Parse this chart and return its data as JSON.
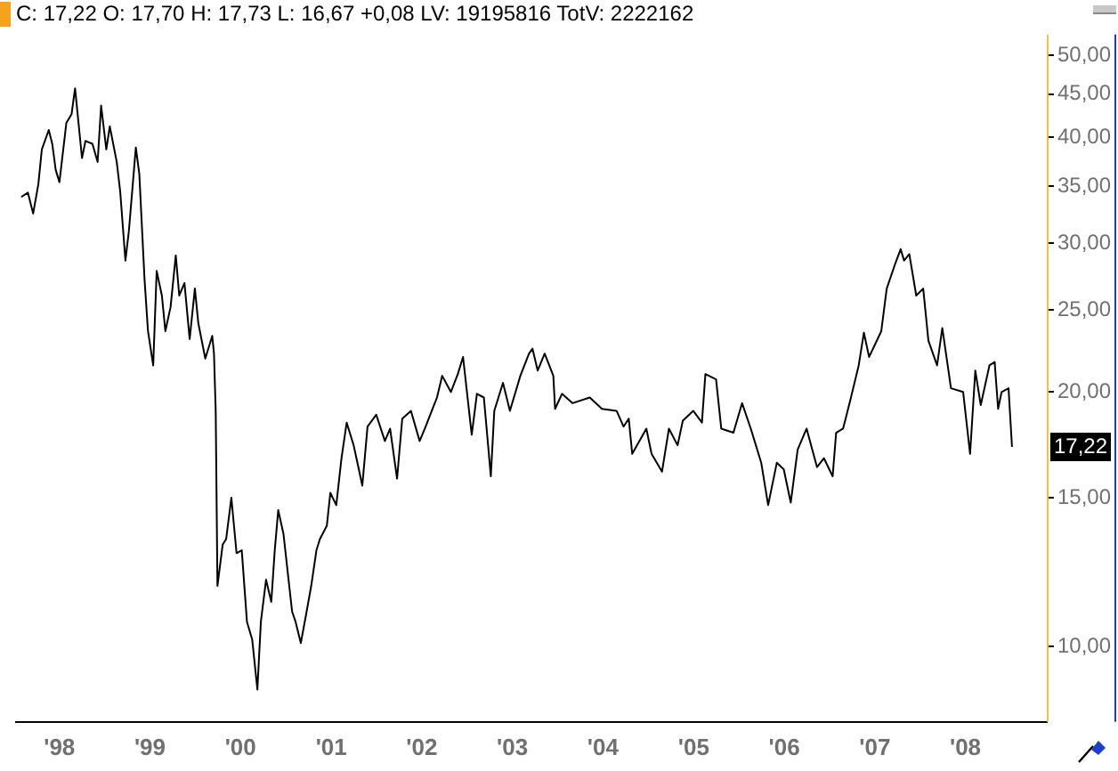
{
  "chart_data": {
    "type": "line",
    "title": "C: 17,22 O: 17,70 H: 17,73 L: 16,67 +0,08 LV: 19195816 TotV: 2222162",
    "log": "y",
    "xlim": [
      "1997-07-10",
      "2008-11-24"
    ],
    "xticks": [
      {
        "value": "1998-01-01",
        "label": "'98"
      },
      {
        "value": "1999-01-01",
        "label": "'99"
      },
      {
        "value": "2000-01-01",
        "label": "'00"
      },
      {
        "value": "2001-01-01",
        "label": "'01"
      },
      {
        "value": "2002-01-01",
        "label": "'02"
      },
      {
        "value": "2003-01-01",
        "label": "'03"
      },
      {
        "value": "2004-01-01",
        "label": "'04"
      },
      {
        "value": "2005-01-01",
        "label": "'05"
      },
      {
        "value": "2006-01-01",
        "label": "'06"
      },
      {
        "value": "2007-01-01",
        "label": "'07"
      },
      {
        "value": "2008-01-01",
        "label": "'08"
      }
    ],
    "ylim": [
      8.15,
      52.9
    ],
    "yticks": [
      {
        "value": 10,
        "label": "10,00"
      },
      {
        "value": 15,
        "label": "15,00"
      },
      {
        "value": 20,
        "label": "20,00"
      },
      {
        "value": 25,
        "label": "25,00"
      },
      {
        "value": 30,
        "label": "30,00"
      },
      {
        "value": 35,
        "label": "35,00"
      },
      {
        "value": 40,
        "label": "40,00"
      },
      {
        "value": 45,
        "label": "45,00"
      },
      {
        "value": 50,
        "label": "50,00"
      }
    ],
    "annotations": [
      {
        "text": "17,22",
        "y": 17.22
      }
    ],
    "x": [
      "1997-07-31",
      "1997-08-27",
      "1997-09-17",
      "1997-10-08",
      "1997-10-22",
      "1997-11-19",
      "1997-12-03",
      "1997-12-17",
      "1998-01-01",
      "1998-01-29",
      "1998-02-19",
      "1998-03-05",
      "1998-04-02",
      "1998-04-16",
      "1998-05-14",
      "1998-06-04",
      "1998-06-18",
      "1998-07-09",
      "1998-07-23",
      "1998-08-20",
      "1998-09-03",
      "1998-09-24",
      "1998-10-08",
      "1998-11-05",
      "1998-11-19",
      "1998-12-10",
      "1998-12-24",
      "1999-01-14",
      "1999-01-28",
      "1999-02-18",
      "1999-03-04",
      "1999-03-25",
      "1999-04-15",
      "1999-04-29",
      "1999-05-20",
      "1999-06-10",
      "1999-07-01",
      "1999-07-15",
      "1999-08-12",
      "1999-09-09",
      "1999-09-16",
      "1999-09-23",
      "1999-09-30",
      "1999-10-21",
      "1999-11-04",
      "1999-11-25",
      "1999-12-16",
      "2000-01-06",
      "2000-01-27",
      "2000-02-17",
      "2000-03-09",
      "2000-03-23",
      "2000-04-13",
      "2000-05-04",
      "2000-05-18",
      "2000-06-01",
      "2000-06-22",
      "2000-07-27",
      "2000-08-10",
      "2000-08-31",
      "2000-09-21",
      "2000-10-12",
      "2000-11-02",
      "2000-11-16",
      "2000-12-14",
      "2000-12-28",
      "2001-01-21",
      "2001-02-11",
      "2001-03-04",
      "2001-04-01",
      "2001-04-22",
      "2001-05-06",
      "2001-05-27",
      "2001-07-01",
      "2001-08-05",
      "2001-08-26",
      "2001-09-23",
      "2001-10-14",
      "2001-11-18",
      "2001-12-23",
      "2002-01-13",
      "2002-02-10",
      "2002-03-03",
      "2002-03-24",
      "2002-04-28",
      "2002-05-26",
      "2002-06-16",
      "2002-07-21",
      "2002-08-11",
      "2002-09-08",
      "2002-10-06",
      "2002-10-20",
      "2002-11-24",
      "2002-12-22",
      "2003-02-02",
      "2003-03-09",
      "2003-03-23",
      "2003-04-13",
      "2003-05-11",
      "2003-06-15",
      "2003-06-22",
      "2003-07-20",
      "2003-08-31",
      "2003-11-09",
      "2003-12-28",
      "2004-02-25",
      "2004-03-24",
      "2004-04-14",
      "2004-04-28",
      "2004-06-24",
      "2004-07-15",
      "2004-08-26",
      "2004-09-23",
      "2004-10-28",
      "2004-11-18",
      "2004-12-30",
      "2005-02-03",
      "2005-02-17",
      "2005-04-01",
      "2005-04-22",
      "2005-06-10",
      "2005-07-15",
      "2005-08-19",
      "2005-09-30",
      "2005-10-28",
      "2005-12-02",
      "2005-12-30",
      "2006-01-27",
      "2006-02-24",
      "2006-04-01",
      "2006-05-13",
      "2006-06-10",
      "2006-07-15",
      "2006-07-29",
      "2006-08-26",
      "2006-09-23",
      "2006-10-28",
      "2006-11-18",
      "2006-12-09",
      "2007-01-27",
      "2007-02-18",
      "2007-03-25",
      "2007-04-15",
      "2007-04-29",
      "2007-05-20",
      "2007-06-17",
      "2007-07-15",
      "2007-08-05",
      "2007-09-09",
      "2007-09-30",
      "2007-11-04",
      "2007-12-23",
      "2008-01-20",
      "2008-02-10",
      "2008-03-03",
      "2008-04-07",
      "2008-04-28",
      "2008-05-12",
      "2008-05-26",
      "2008-06-23",
      "2008-07-07"
    ],
    "series": [
      {
        "color": "#000000",
        "values": [
          34.0,
          34.4,
          32.5,
          35.2,
          38.7,
          40.8,
          39.3,
          36.6,
          35.4,
          41.6,
          42.6,
          45.7,
          37.8,
          39.6,
          39.3,
          37.4,
          43.6,
          38.7,
          41.2,
          37.4,
          34.5,
          28.6,
          31.0,
          38.9,
          36.2,
          27.2,
          23.6,
          21.5,
          27.8,
          26.0,
          23.6,
          25.2,
          29.0,
          26.0,
          26.9,
          23.1,
          26.5,
          24.1,
          21.9,
          23.3,
          22.2,
          19.0,
          11.8,
          13.2,
          13.4,
          15.0,
          12.9,
          13.0,
          10.7,
          10.2,
          8.9,
          10.7,
          12.0,
          11.3,
          13.0,
          14.5,
          13.6,
          11.0,
          10.7,
          10.1,
          10.9,
          11.8,
          13.0,
          13.4,
          13.9,
          15.2,
          14.7,
          16.7,
          18.4,
          17.3,
          16.2,
          15.5,
          18.2,
          18.8,
          17.5,
          18.1,
          15.8,
          18.6,
          19.0,
          17.5,
          18.1,
          19.0,
          19.7,
          20.9,
          20.0,
          21.0,
          22.0,
          17.8,
          19.9,
          19.7,
          15.9,
          19.0,
          20.5,
          19.0,
          20.9,
          22.2,
          22.5,
          21.2,
          22.2,
          20.9,
          19.1,
          19.9,
          19.4,
          19.7,
          19.1,
          19.0,
          18.2,
          18.6,
          16.9,
          18.1,
          16.9,
          16.1,
          18.1,
          17.3,
          18.5,
          19.0,
          18.4,
          21.0,
          20.7,
          18.1,
          17.9,
          19.4,
          18.1,
          16.5,
          14.7,
          16.5,
          16.2,
          14.8,
          17.1,
          18.1,
          16.3,
          16.7,
          15.9,
          17.9,
          18.1,
          19.5,
          21.5,
          23.5,
          22.0,
          23.6,
          26.5,
          28.4,
          29.5,
          28.6,
          29.1,
          26.0,
          26.5,
          23.0,
          21.5,
          23.8,
          20.2,
          20.0,
          16.9,
          21.2,
          19.3,
          21.5,
          21.7,
          19.1,
          20.0,
          20.2,
          17.22
        ]
      }
    ]
  }
}
